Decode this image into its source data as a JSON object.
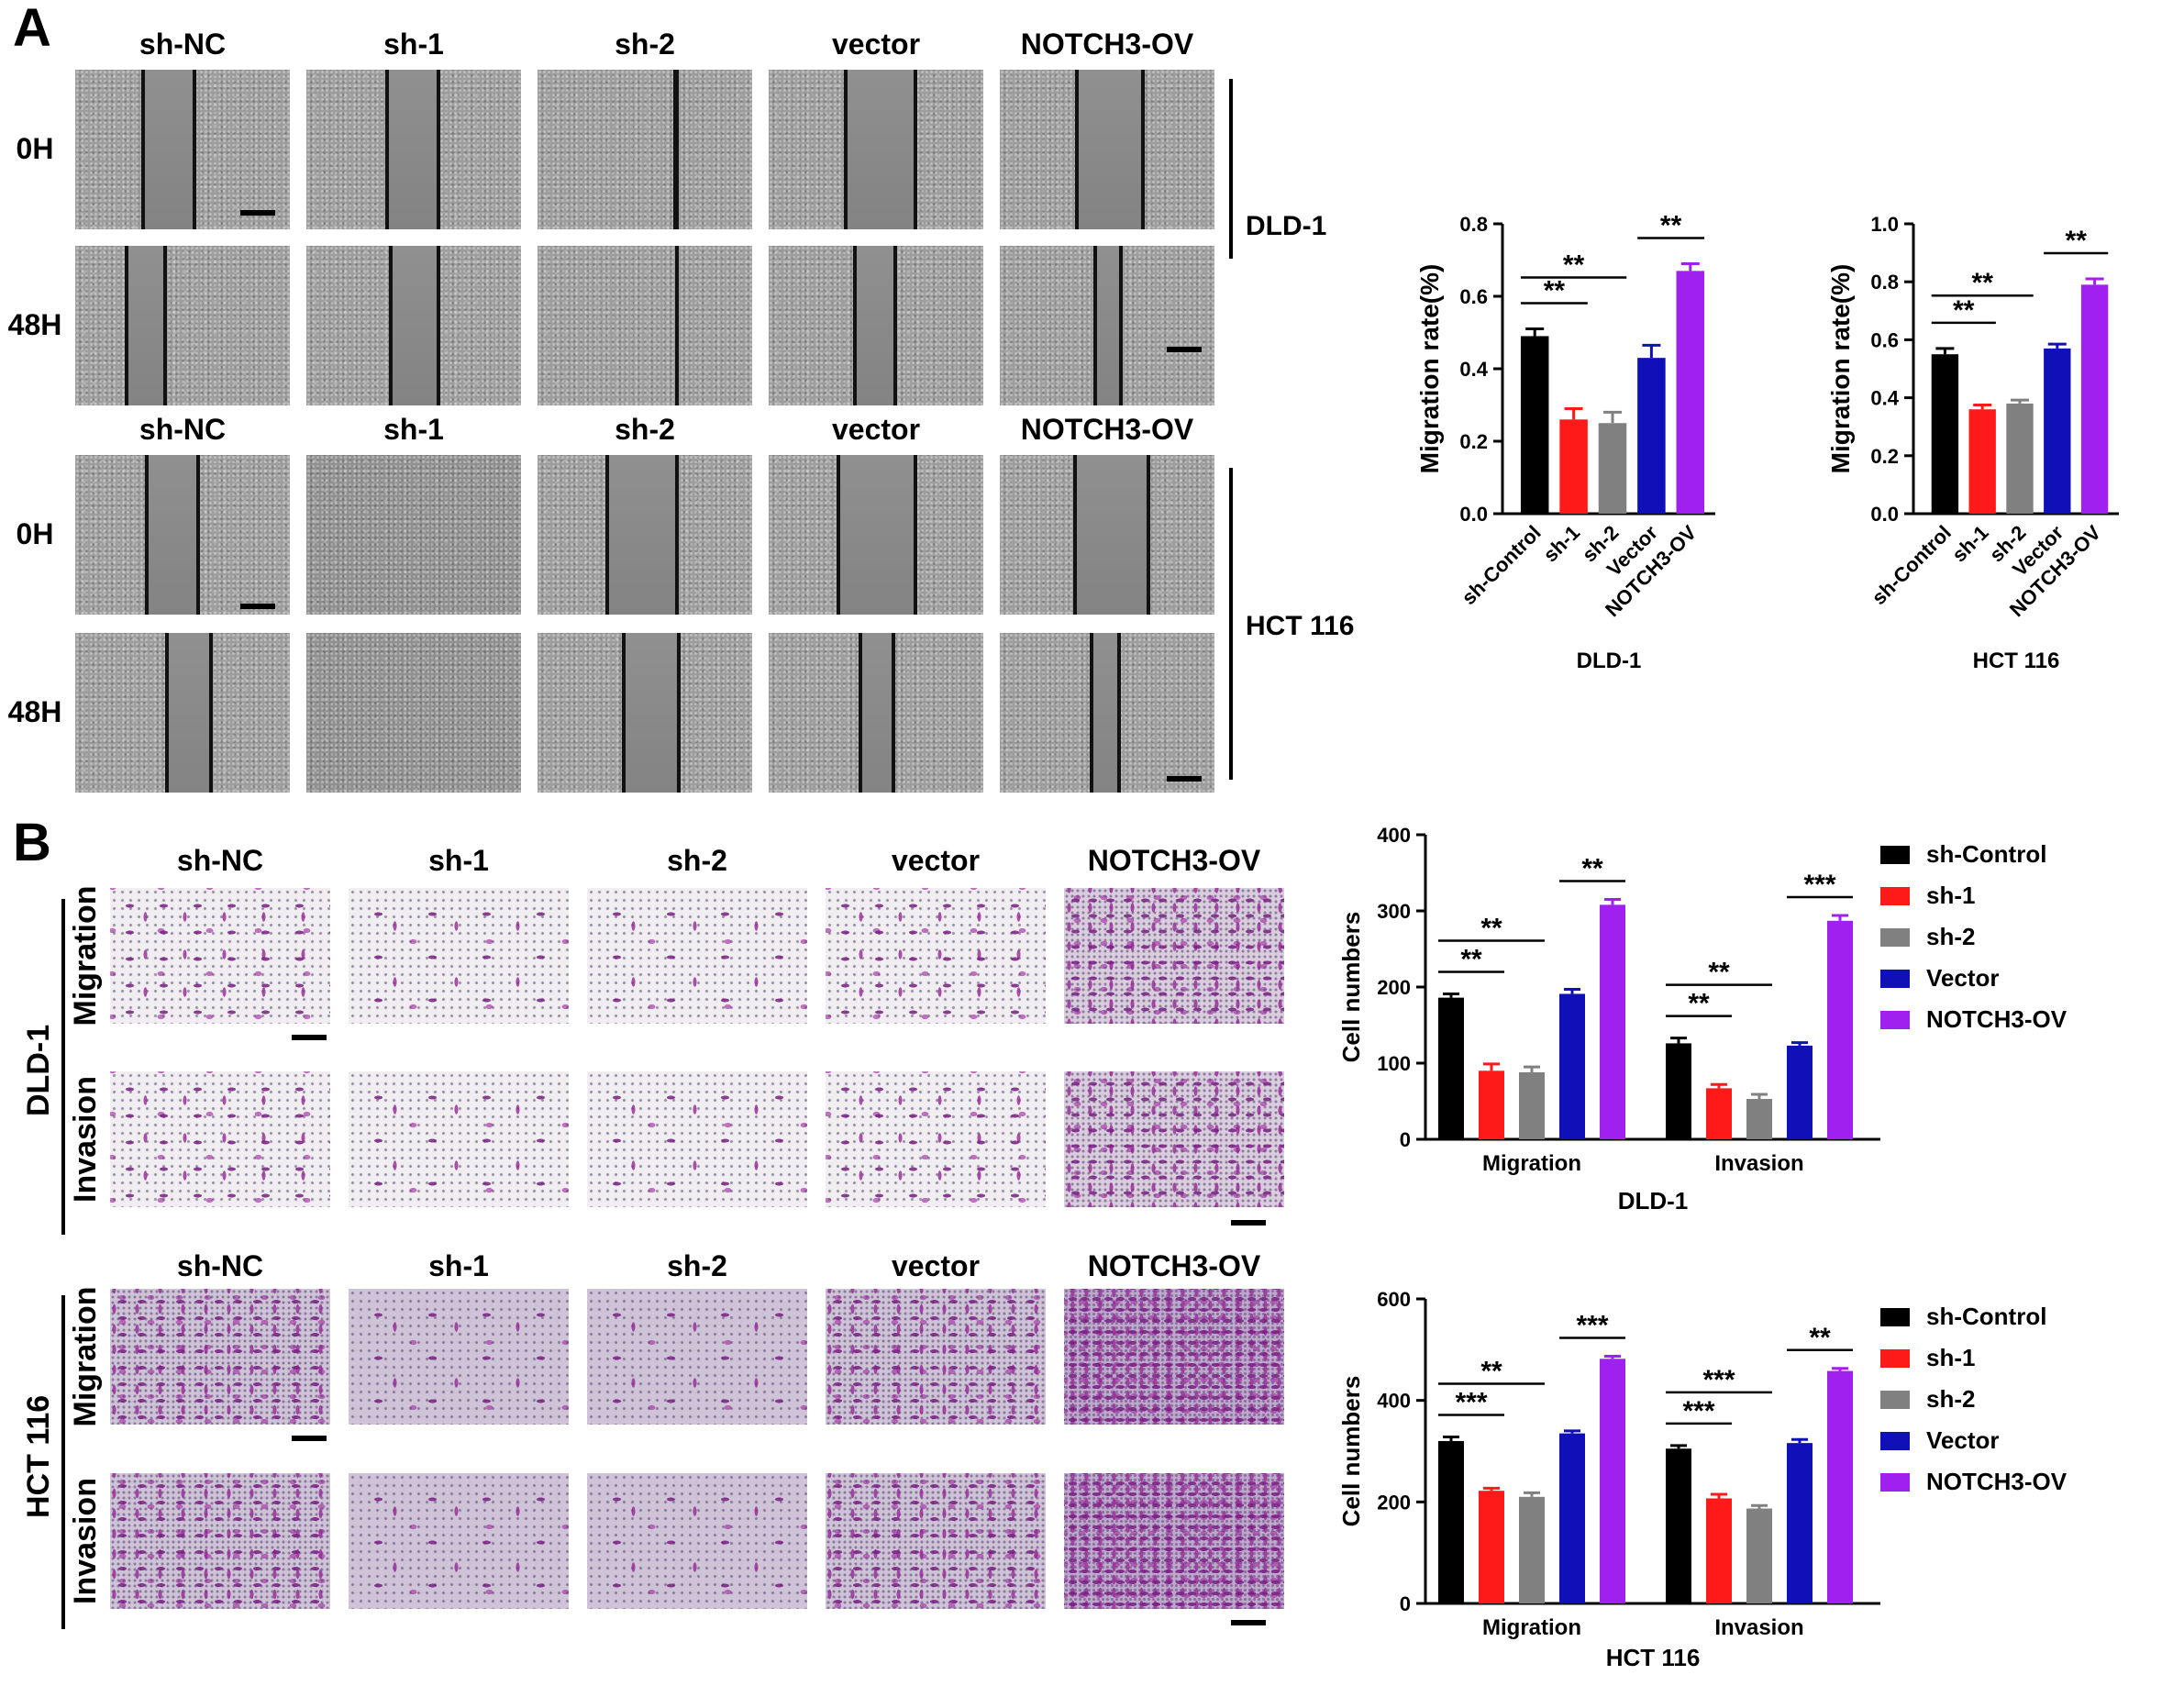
{
  "panel_a": {
    "letter": "A",
    "col_labels_top": [
      "sh-NC",
      "sh-1",
      "sh-2",
      "vector",
      "NOTCH3-OV"
    ],
    "col_labels_bottom": [
      "sh-NC",
      "sh-1",
      "sh-2",
      "vector",
      "NOTCH3-OV"
    ],
    "row_labels": [
      "0H",
      "48H",
      "0H",
      "48H"
    ],
    "cell_lines": [
      "DLD-1",
      "HCT 116"
    ]
  },
  "panel_b": {
    "letter": "B",
    "col_labels_top": [
      "sh-NC",
      "sh-1",
      "sh-2",
      "vector",
      "NOTCH3-OV"
    ],
    "col_labels_bottom": [
      "sh-NC",
      "sh-1",
      "sh-2",
      "vector",
      "NOTCH3-OV"
    ],
    "row_labels": [
      "Migration",
      "Invasion",
      "Migration",
      "Invasion"
    ],
    "cell_lines": [
      "DLD-1",
      "HCT 116"
    ]
  },
  "colors": {
    "sh-Control": "#000000",
    "sh-1": "#ff1a1a",
    "sh-2": "#808080",
    "Vector": "#1010b8",
    "NOTCH3-OV": "#a020f0"
  },
  "legend": [
    "sh-Control",
    "sh-1",
    "sh-2",
    "Vector",
    "NOTCH3-OV"
  ],
  "chart_data": [
    {
      "type": "bar",
      "title": "DLD-1",
      "ylabel": "Migration rate(%)",
      "ylim": [
        0,
        0.8
      ],
      "yticks": [
        "0.0",
        "0.2",
        "0.4",
        "0.6",
        "0.8"
      ],
      "categories": [
        "sh-Control",
        "sh-1",
        "sh-2",
        "Vector",
        "NOTCH3-OV"
      ],
      "values": [
        0.49,
        0.26,
        0.25,
        0.43,
        0.67
      ],
      "errors": [
        0.02,
        0.03,
        0.03,
        0.035,
        0.02
      ],
      "significance": [
        {
          "from": 0,
          "to": 1,
          "label": "**"
        },
        {
          "from": 0,
          "to": 2,
          "label": "**"
        },
        {
          "from": 3,
          "to": 4,
          "label": "**"
        }
      ]
    },
    {
      "type": "bar",
      "title": "HCT 116",
      "ylabel": "Migration rate(%)",
      "ylim": [
        0,
        1.0
      ],
      "yticks": [
        "0.0",
        "0.2",
        "0.4",
        "0.6",
        "0.8",
        "1.0"
      ],
      "categories": [
        "sh-Control",
        "sh-1",
        "sh-2",
        "Vector",
        "NOTCH3-OV"
      ],
      "values": [
        0.55,
        0.36,
        0.38,
        0.57,
        0.79
      ],
      "errors": [
        0.02,
        0.015,
        0.012,
        0.015,
        0.02
      ],
      "significance": [
        {
          "from": 0,
          "to": 1,
          "label": "**"
        },
        {
          "from": 0,
          "to": 2,
          "label": "**"
        },
        {
          "from": 3,
          "to": 4,
          "label": "**"
        }
      ]
    },
    {
      "type": "bar",
      "title": "DLD-1",
      "ylabel": "Cell numbers",
      "ylim": [
        0,
        400
      ],
      "yticks": [
        "0",
        "100",
        "200",
        "300",
        "400"
      ],
      "categories": [
        "Migration",
        "Invasion"
      ],
      "series": [
        {
          "name": "sh-Control",
          "values": [
            186,
            126
          ],
          "errors": [
            5,
            7
          ]
        },
        {
          "name": "sh-1",
          "values": [
            90,
            67
          ],
          "errors": [
            9,
            5
          ]
        },
        {
          "name": "sh-2",
          "values": [
            88,
            53
          ],
          "errors": [
            7,
            6
          ]
        },
        {
          "name": "Vector",
          "values": [
            191,
            123
          ],
          "errors": [
            6,
            4
          ]
        },
        {
          "name": "NOTCH3-OV",
          "values": [
            308,
            287
          ],
          "errors": [
            7,
            7
          ]
        }
      ],
      "significance": [
        {
          "group": 0,
          "from": 0,
          "to": 1,
          "label": "**"
        },
        {
          "group": 0,
          "from": 0,
          "to": 2,
          "label": "**"
        },
        {
          "group": 0,
          "from": 3,
          "to": 4,
          "label": "**"
        },
        {
          "group": 1,
          "from": 0,
          "to": 1,
          "label": "**"
        },
        {
          "group": 1,
          "from": 0,
          "to": 2,
          "label": "**"
        },
        {
          "group": 1,
          "from": 3,
          "to": 4,
          "label": "***"
        }
      ]
    },
    {
      "type": "bar",
      "title": "HCT 116",
      "ylabel": "Cell numbers",
      "ylim": [
        0,
        600
      ],
      "yticks": [
        "0",
        "200",
        "400",
        "600"
      ],
      "categories": [
        "Migration",
        "Invasion"
      ],
      "series": [
        {
          "name": "sh-Control",
          "values": [
            320,
            305
          ],
          "errors": [
            8,
            6
          ]
        },
        {
          "name": "sh-1",
          "values": [
            222,
            207
          ],
          "errors": [
            5,
            8
          ]
        },
        {
          "name": "sh-2",
          "values": [
            210,
            187
          ],
          "errors": [
            8,
            6
          ]
        },
        {
          "name": "Vector",
          "values": [
            335,
            316
          ],
          "errors": [
            5,
            7
          ]
        },
        {
          "name": "NOTCH3-OV",
          "values": [
            482,
            458
          ],
          "errors": [
            5,
            5
          ]
        }
      ],
      "significance": [
        {
          "group": 0,
          "from": 0,
          "to": 1,
          "label": "***"
        },
        {
          "group": 0,
          "from": 0,
          "to": 2,
          "label": "**"
        },
        {
          "group": 0,
          "from": 3,
          "to": 4,
          "label": "***"
        },
        {
          "group": 1,
          "from": 0,
          "to": 1,
          "label": "***"
        },
        {
          "group": 1,
          "from": 0,
          "to": 2,
          "label": "***"
        },
        {
          "group": 1,
          "from": 3,
          "to": 4,
          "label": "**"
        }
      ]
    }
  ]
}
